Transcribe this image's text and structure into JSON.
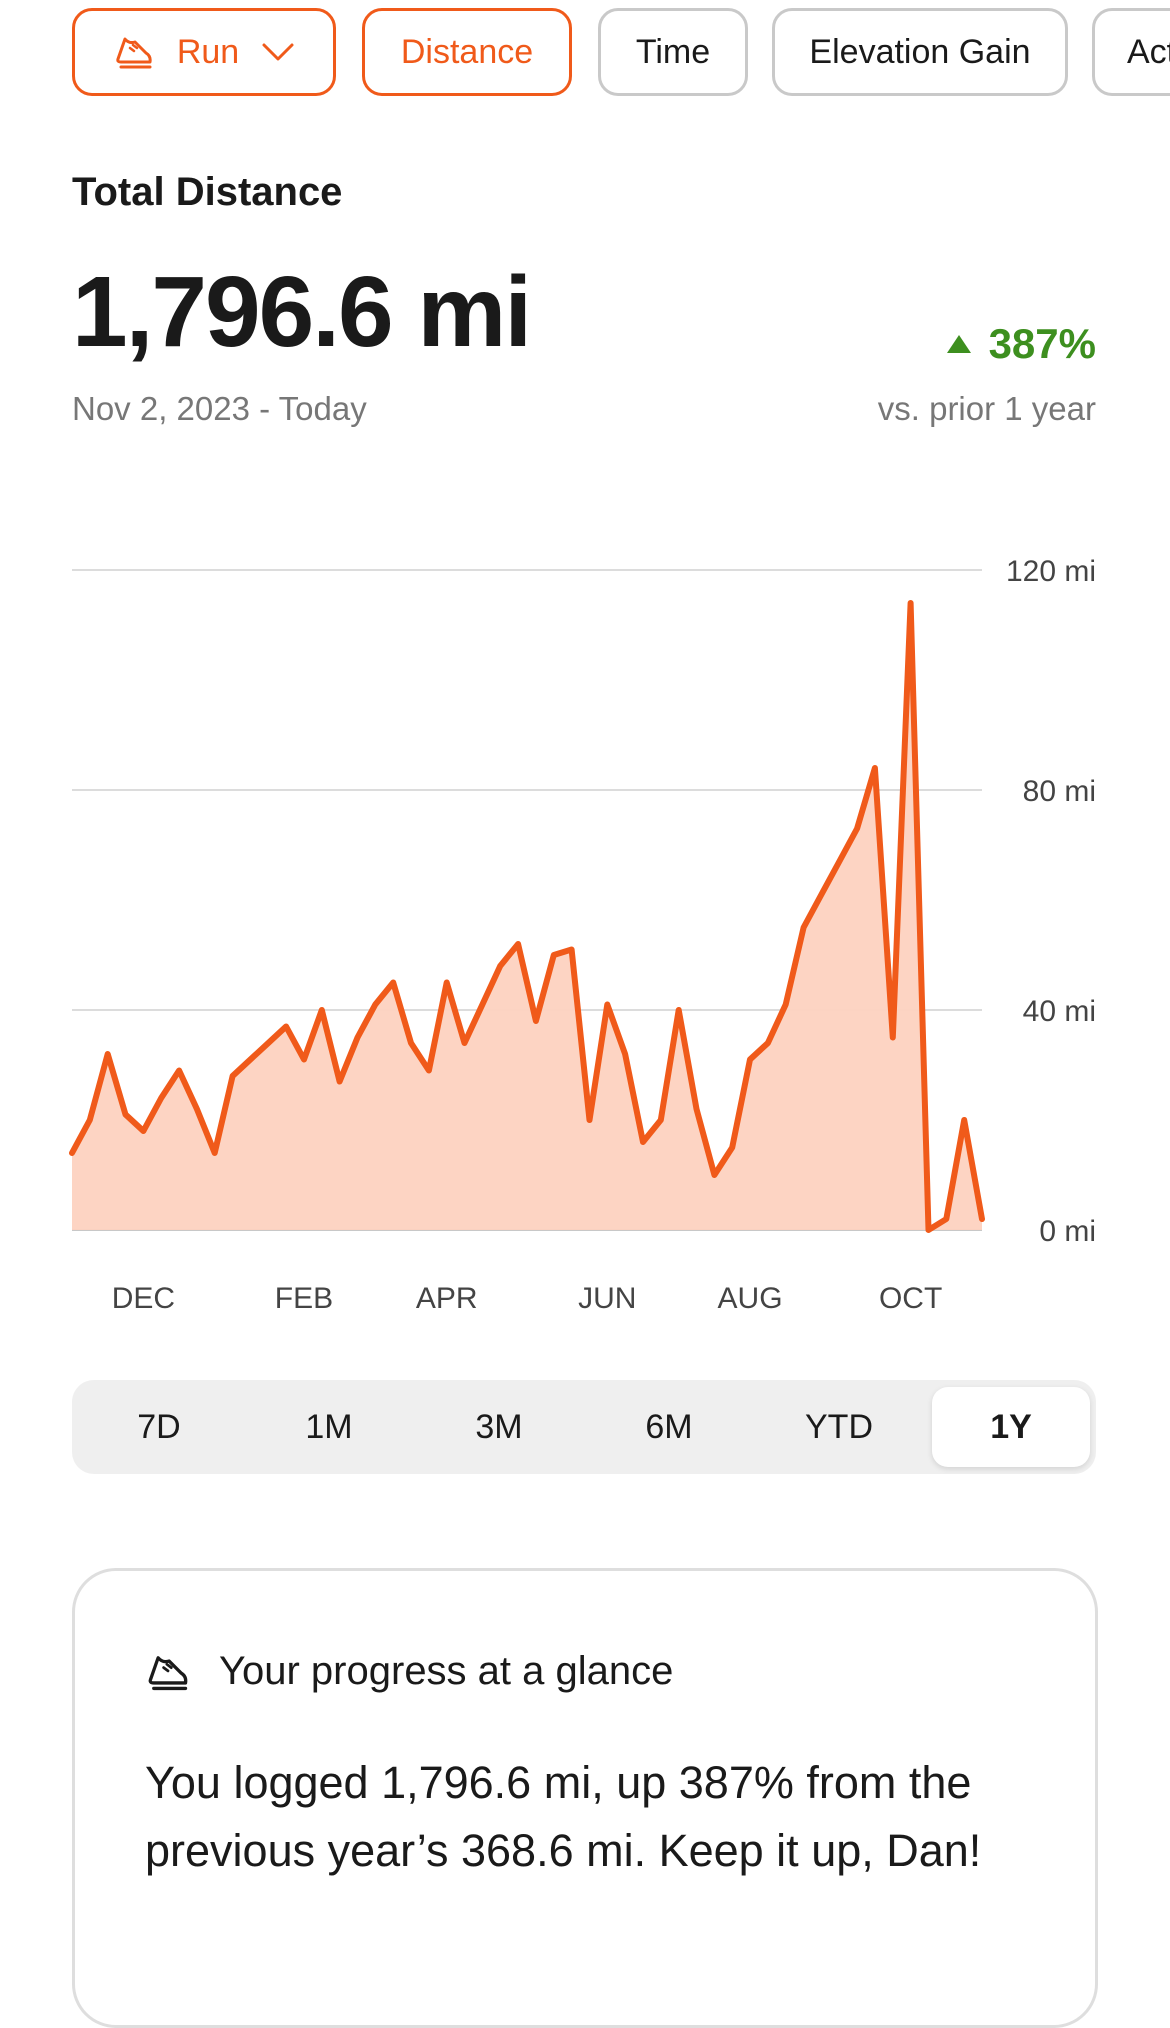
{
  "filters": [
    {
      "label": "Run",
      "icon": "running-shoe-icon",
      "dropdown": true,
      "active": true
    },
    {
      "label": "Distance",
      "active": true
    },
    {
      "label": "Time",
      "active": false
    },
    {
      "label": "Elevation Gain",
      "active": false
    },
    {
      "label": "Act",
      "active": false
    }
  ],
  "summary": {
    "title": "Total Distance",
    "total": "1,796.6 mi",
    "range": "Nov 2, 2023 - Today",
    "change": "387%",
    "comparison": "vs. prior 1 year"
  },
  "colors": {
    "accent": "#f05a1a",
    "fill": "#fdd2c0",
    "positive": "#3d8f1f"
  },
  "chart_data": {
    "type": "area",
    "ylabel": "",
    "ylim": [
      0,
      120
    ],
    "y_ticks": [
      "120 mi",
      "80 mi",
      "40 mi",
      "0 mi"
    ],
    "y_tick_values": [
      120,
      80,
      40,
      0
    ],
    "x_ticks": [
      {
        "label": "DEC",
        "week": 4
      },
      {
        "label": "FEB",
        "week": 13
      },
      {
        "label": "APR",
        "week": 21
      },
      {
        "label": "JUN",
        "week": 30
      },
      {
        "label": "AUG",
        "week": 38
      },
      {
        "label": "OCT",
        "week": 47
      }
    ],
    "grid": true,
    "series": [
      {
        "values": [
          14,
          20,
          32,
          21,
          18,
          24,
          29,
          22,
          14,
          28,
          31,
          34,
          37,
          31,
          40,
          27,
          35,
          41,
          45,
          34,
          29,
          45,
          34,
          41,
          48,
          52,
          38,
          50,
          51,
          20,
          41,
          32,
          16,
          20,
          40,
          22,
          10,
          15,
          31,
          34,
          41,
          55,
          61,
          67,
          73,
          84,
          35,
          114,
          0,
          2,
          20,
          2
        ]
      }
    ]
  },
  "periods": [
    {
      "label": "7D",
      "active": false
    },
    {
      "label": "1M",
      "active": false
    },
    {
      "label": "3M",
      "active": false
    },
    {
      "label": "6M",
      "active": false
    },
    {
      "label": "YTD",
      "active": false
    },
    {
      "label": "1Y",
      "active": true
    }
  ],
  "progress_card": {
    "icon": "running-shoe-icon",
    "title": "Your progress at a glance",
    "body": "You logged 1,796.6 mi, up 387% from the previous year’s 368.6 mi. Keep it up, Dan!"
  }
}
